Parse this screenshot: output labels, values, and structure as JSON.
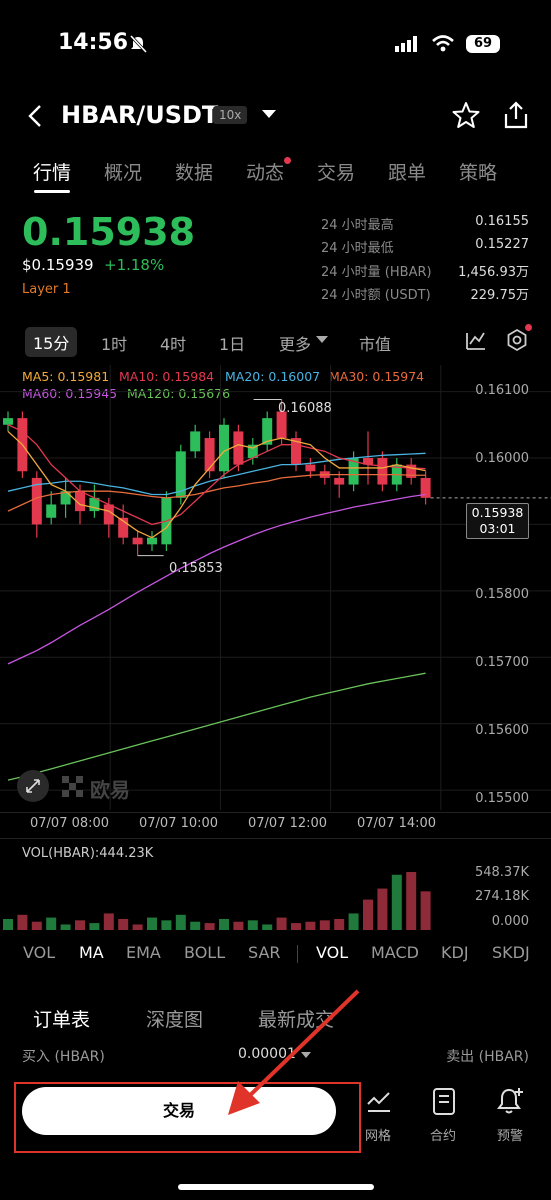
{
  "status_bar": {
    "time": "14:56",
    "battery": "69"
  },
  "header": {
    "pair": "HBAR/USDT",
    "leverage": "10x"
  },
  "tabs": [
    "行情",
    "概况",
    "数据",
    "动态",
    "交易",
    "跟单",
    "策略"
  ],
  "price": {
    "last": "0.15938",
    "usd": "$0.15939",
    "change": "+1.18%",
    "tag": "Layer 1"
  },
  "stats": [
    {
      "label": "24 小时最高",
      "value": "0.16155"
    },
    {
      "label": "24 小时最低",
      "value": "0.15227"
    },
    {
      "label": "24 小时量 (HBAR)",
      "value": "1,456.93万"
    },
    {
      "label": "24 小时额 (USDT)",
      "value": "229.75万"
    }
  ],
  "timeframes": [
    "15分",
    "1时",
    "4时",
    "1日",
    "更多",
    "市值"
  ],
  "ma_legend": {
    "ma5": "MA5: 0.15981",
    "ma10": "MA10: 0.15984",
    "ma20": "MA20: 0.16007",
    "ma30": "MA30: 0.15974",
    "ma60": "MA60: 0.15945",
    "ma120": "MA120: 0.15676"
  },
  "colors": {
    "up": "#2dbd5a",
    "down": "#e2394f",
    "ma5": "#f2a93b",
    "ma10": "#e2394f",
    "ma20": "#4ab3e0",
    "ma30": "#e86b3c",
    "ma60": "#c556e0",
    "ma120": "#69c25a"
  },
  "chart": {
    "y_ticks": [
      "0.16100",
      "0.16000",
      "0.15800",
      "0.15700",
      "0.15600",
      "0.15500"
    ],
    "x_ticks": [
      "07/07 08:00",
      "07/07 10:00",
      "07/07 12:00",
      "07/07 14:00"
    ],
    "high_label": "0.16088",
    "low_label": "0.15853",
    "current_price": "0.15938",
    "countdown": "03:01",
    "watermark": "欧易",
    "volume_label": "VOL(HBAR):444.23K",
    "volume_ticks": [
      "548.37K",
      "274.18K",
      "0.000"
    ]
  },
  "chart_data": {
    "type": "candlestick",
    "candles": [
      {
        "o": 0.1605,
        "c": 0.1606,
        "h": 0.1607,
        "l": 0.1604
      },
      {
        "o": 0.1606,
        "c": 0.1598,
        "h": 0.1607,
        "l": 0.1597
      },
      {
        "o": 0.1597,
        "c": 0.159,
        "h": 0.1598,
        "l": 0.1588
      },
      {
        "o": 0.1591,
        "c": 0.1593,
        "h": 0.1595,
        "l": 0.159
      },
      {
        "o": 0.1593,
        "c": 0.1595,
        "h": 0.1597,
        "l": 0.1591
      },
      {
        "o": 0.1595,
        "c": 0.1592,
        "h": 0.1596,
        "l": 0.159
      },
      {
        "o": 0.1592,
        "c": 0.1594,
        "h": 0.1596,
        "l": 0.1591
      },
      {
        "o": 0.1593,
        "c": 0.159,
        "h": 0.1594,
        "l": 0.1588
      },
      {
        "o": 0.1591,
        "c": 0.1588,
        "h": 0.1593,
        "l": 0.1587
      },
      {
        "o": 0.1588,
        "c": 0.1587,
        "h": 0.1589,
        "l": 0.15853
      },
      {
        "o": 0.1587,
        "c": 0.1588,
        "h": 0.1589,
        "l": 0.1586
      },
      {
        "o": 0.1587,
        "c": 0.1594,
        "h": 0.1595,
        "l": 0.1586
      },
      {
        "o": 0.1594,
        "c": 0.1601,
        "h": 0.1602,
        "l": 0.1593
      },
      {
        "o": 0.1601,
        "c": 0.1604,
        "h": 0.1605,
        "l": 0.16
      },
      {
        "o": 0.1603,
        "c": 0.1598,
        "h": 0.1604,
        "l": 0.1597
      },
      {
        "o": 0.1598,
        "c": 0.1605,
        "h": 0.1606,
        "l": 0.1597
      },
      {
        "o": 0.1604,
        "c": 0.1599,
        "h": 0.1605,
        "l": 0.1598
      },
      {
        "o": 0.16,
        "c": 0.1602,
        "h": 0.1603,
        "l": 0.1599
      },
      {
        "o": 0.1602,
        "c": 0.1606,
        "h": 0.1607,
        "l": 0.1601
      },
      {
        "o": 0.1607,
        "c": 0.1603,
        "h": 0.16088,
        "l": 0.1602
      },
      {
        "o": 0.1603,
        "c": 0.1599,
        "h": 0.1604,
        "l": 0.1598
      },
      {
        "o": 0.1599,
        "c": 0.1598,
        "h": 0.16,
        "l": 0.1597
      },
      {
        "o": 0.1598,
        "c": 0.1597,
        "h": 0.1599,
        "l": 0.1596
      },
      {
        "o": 0.1597,
        "c": 0.1596,
        "h": 0.1598,
        "l": 0.1594
      },
      {
        "o": 0.1596,
        "c": 0.16,
        "h": 0.1601,
        "l": 0.1595
      },
      {
        "o": 0.16,
        "c": 0.1599,
        "h": 0.1604,
        "l": 0.1596
      },
      {
        "o": 0.16,
        "c": 0.1596,
        "h": 0.1601,
        "l": 0.1595
      },
      {
        "o": 0.1596,
        "c": 0.1599,
        "h": 0.16,
        "l": 0.1595
      },
      {
        "o": 0.1599,
        "c": 0.1597,
        "h": 0.16,
        "l": 0.1596
      },
      {
        "o": 0.1597,
        "c": 0.1594,
        "h": 0.1598,
        "l": 0.1593
      }
    ],
    "ma5": [
      0.1604,
      0.1602,
      0.1599,
      0.1596,
      0.1595,
      0.1593,
      0.15925,
      0.1592,
      0.15905,
      0.1589,
      0.1588,
      0.15895,
      0.15925,
      0.1596,
      0.15985,
      0.1601,
      0.1602,
      0.16015,
      0.16025,
      0.1603,
      0.16025,
      0.1602,
      0.16,
      0.15985,
      0.15985,
      0.15985,
      0.15985,
      0.1599,
      0.15985,
      0.15981
    ],
    "ma10": [
      0.1605,
      0.1604,
      0.1602,
      0.1599,
      0.1597,
      0.1595,
      0.1594,
      0.1593,
      0.1592,
      0.1591,
      0.159,
      0.15905,
      0.15915,
      0.15935,
      0.15955,
      0.15975,
      0.1599,
      0.16,
      0.1601,
      0.1602,
      0.1602,
      0.16015,
      0.1601,
      0.16,
      0.15995,
      0.1599,
      0.15988,
      0.15986,
      0.15985,
      0.15984
    ],
    "ma20": [
      0.1595,
      0.15955,
      0.1596,
      0.15962,
      0.15965,
      0.15965,
      0.15962,
      0.15958,
      0.15955,
      0.1595,
      0.15945,
      0.15945,
      0.1595,
      0.15958,
      0.15965,
      0.1597,
      0.15975,
      0.1598,
      0.15985,
      0.1599,
      0.1599,
      0.15992,
      0.15995,
      0.15998,
      0.16,
      0.16002,
      0.16004,
      0.16005,
      0.16006,
      0.16007
    ],
    "ma30": [
      0.1592,
      0.1593,
      0.1594,
      0.15945,
      0.15948,
      0.1595,
      0.1595,
      0.1595,
      0.15948,
      0.15945,
      0.15942,
      0.1594,
      0.15942,
      0.15945,
      0.1595,
      0.15955,
      0.15958,
      0.15962,
      0.15965,
      0.1597,
      0.15972,
      0.15974,
      0.15975,
      0.15975,
      0.15975,
      0.15975,
      0.15975,
      0.15975,
      0.15974,
      0.15974
    ],
    "ma60": [
      0.1569,
      0.157,
      0.1571,
      0.15722,
      0.15735,
      0.15748,
      0.1576,
      0.15772,
      0.15785,
      0.15798,
      0.1581,
      0.15822,
      0.15834,
      0.15845,
      0.15856,
      0.15866,
      0.15875,
      0.15884,
      0.15892,
      0.15899,
      0.15905,
      0.15911,
      0.15916,
      0.15921,
      0.15926,
      0.1593,
      0.15934,
      0.15938,
      0.15942,
      0.15945
    ],
    "ma120": [
      0.15515,
      0.1552,
      0.15526,
      0.15532,
      0.15538,
      0.15544,
      0.1555,
      0.15556,
      0.15562,
      0.15568,
      0.15574,
      0.1558,
      0.15586,
      0.15592,
      0.15598,
      0.15604,
      0.1561,
      0.15616,
      0.15622,
      0.15628,
      0.15634,
      0.1564,
      0.15645,
      0.1565,
      0.15655,
      0.1566,
      0.15664,
      0.15668,
      0.15672,
      0.15676
    ],
    "volume": [
      40,
      55,
      30,
      45,
      20,
      35,
      25,
      60,
      40,
      20,
      45,
      35,
      55,
      30,
      25,
      40,
      30,
      35,
      20,
      45,
      25,
      30,
      35,
      40,
      60,
      110,
      150,
      200,
      210,
      140
    ],
    "y_range": [
      0.1547,
      0.1614
    ]
  },
  "indicators": [
    "VOL",
    "MA",
    "EMA",
    "BOLL",
    "SAR",
    "VOL",
    "MACD",
    "KDJ",
    "SKDJ"
  ],
  "orderbook": {
    "tabs": [
      "订单表",
      "深度图",
      "最新成交"
    ],
    "buy_label": "买入 (HBAR)",
    "precision": "0.00001",
    "sell_label": "卖出 (HBAR)"
  },
  "bottom": {
    "trade_button": "交易",
    "tools": [
      "网格",
      "合约",
      "预警"
    ]
  }
}
